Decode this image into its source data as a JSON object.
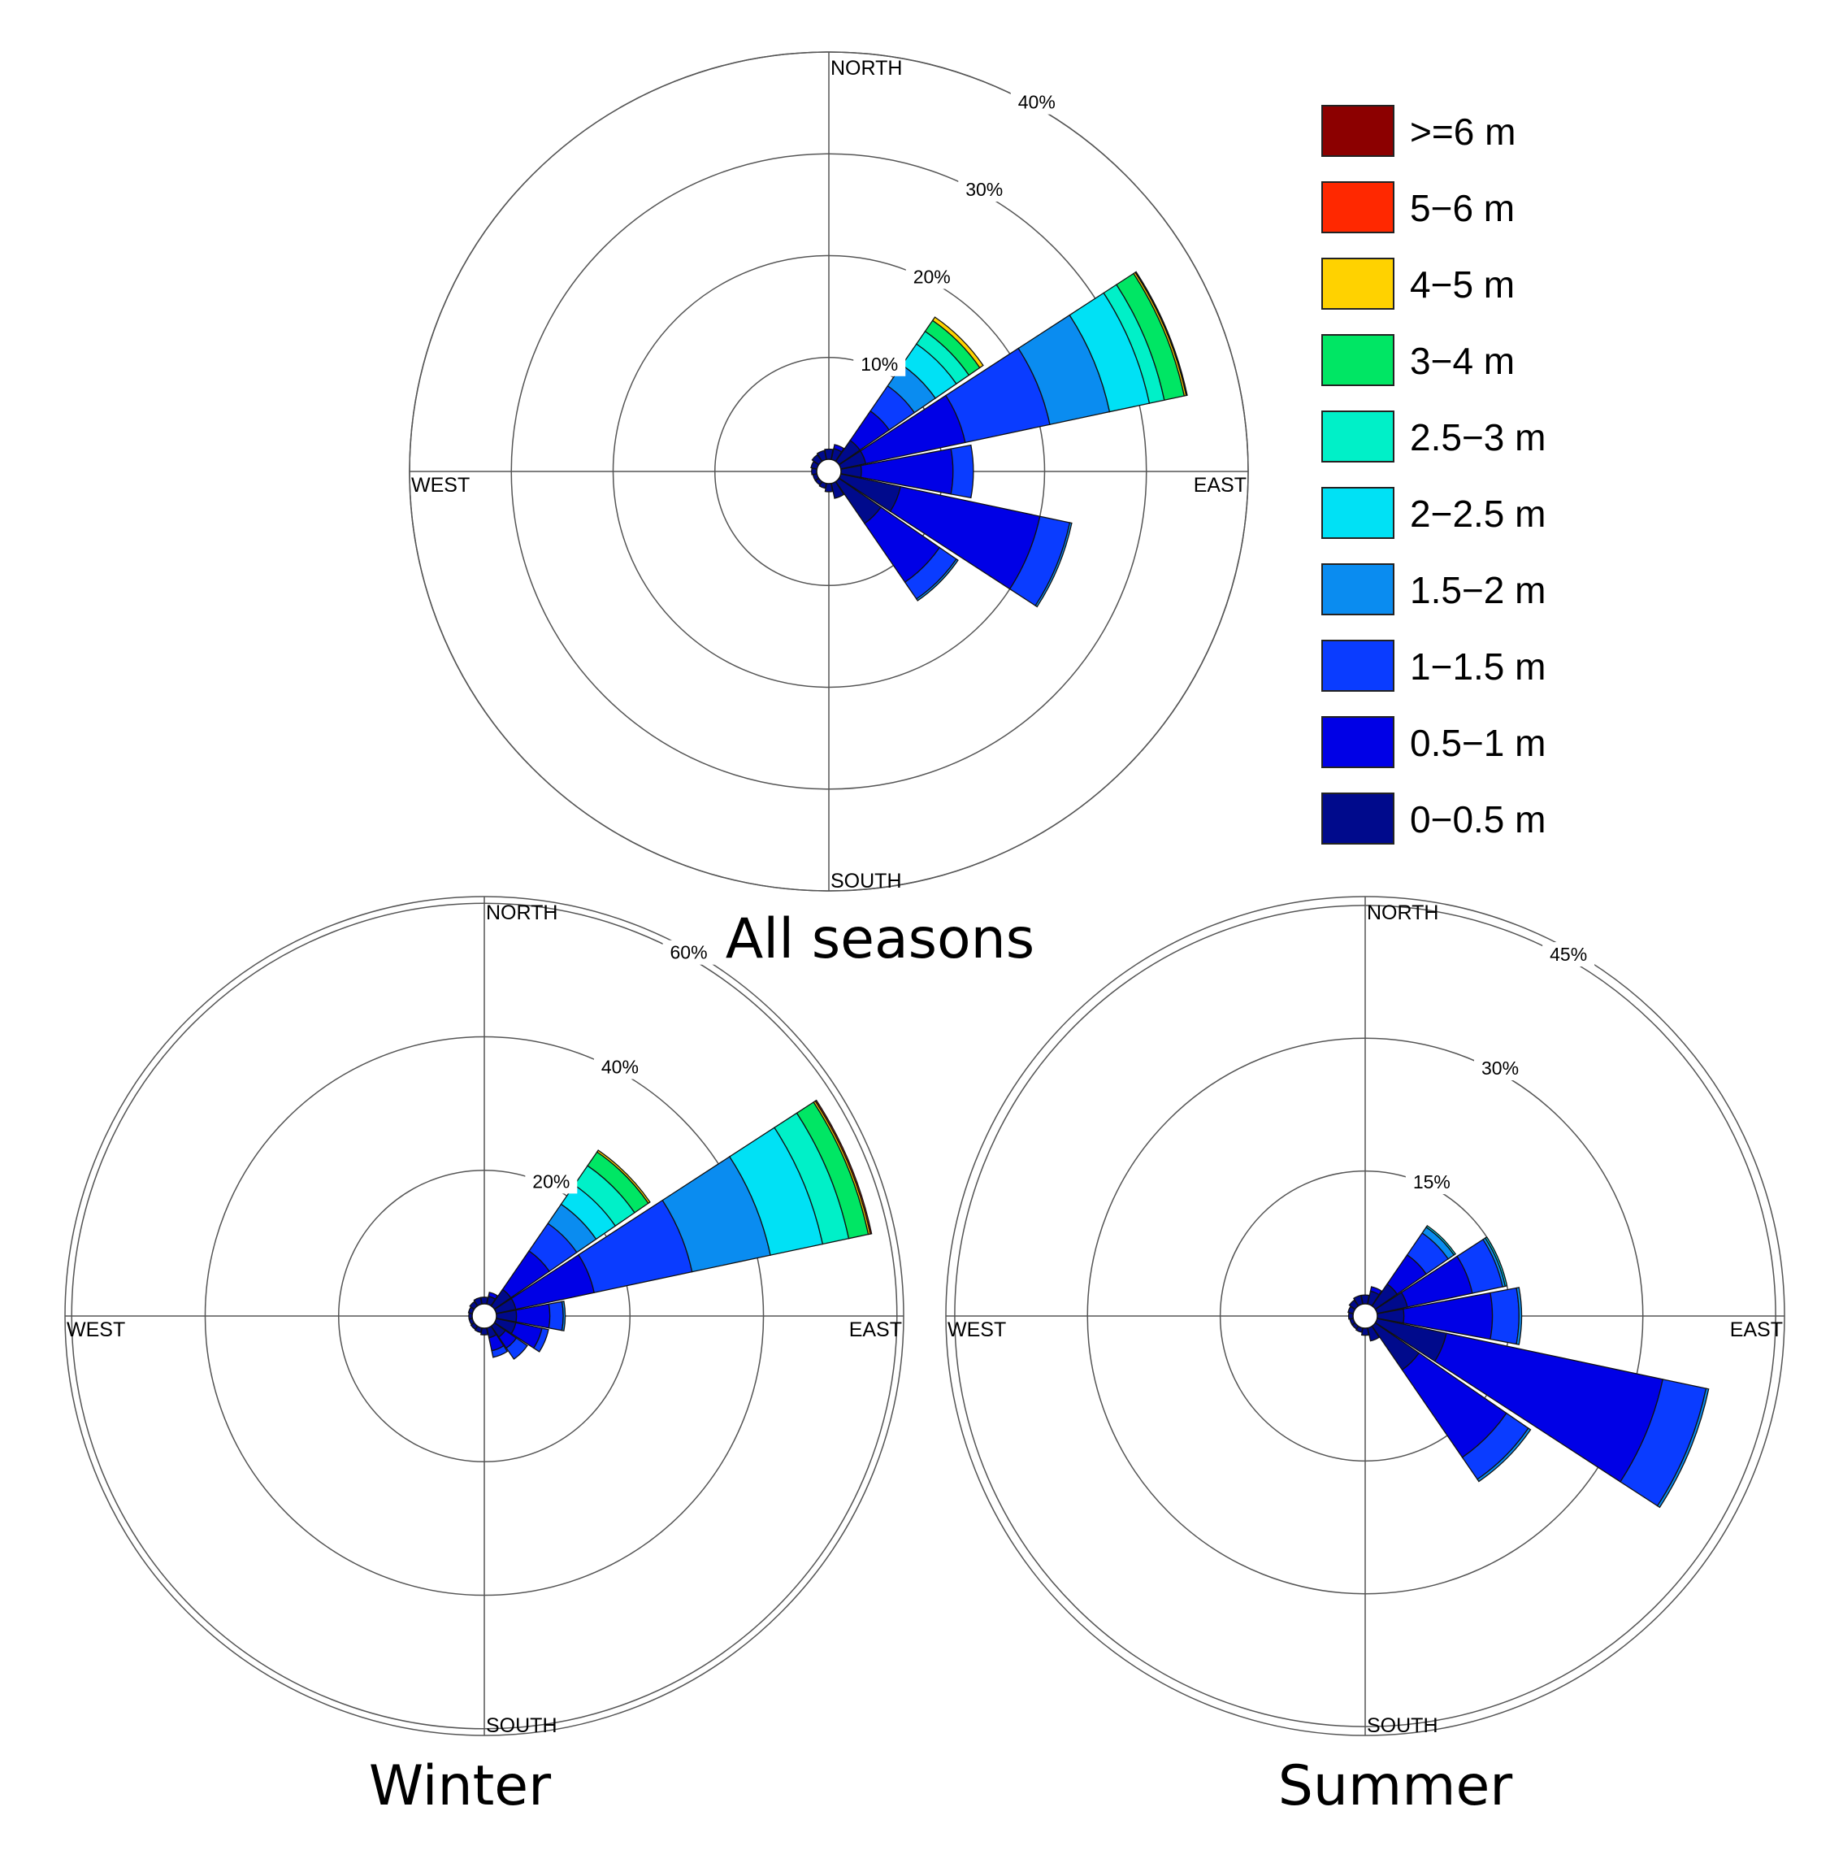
{
  "chart_data": {
    "type": "wind_rose",
    "value_unit": "% frequency",
    "direction_labels": {
      "north": "NORTH",
      "east": "EAST",
      "south": "SOUTH",
      "west": "WEST"
    },
    "legend": {
      "position": "top-right",
      "bins": [
        {
          "label": "0−0.5 m",
          "color": "#000a8c"
        },
        {
          "label": "0.5−1 m",
          "color": "#0000e6"
        },
        {
          "label": "1−1.5 m",
          "color": "#0a3cff"
        },
        {
          "label": "1.5−2 m",
          "color": "#0a8cf0"
        },
        {
          "label": "2−2.5 m",
          "color": "#00e1f5"
        },
        {
          "label": "2.5−3 m",
          "color": "#00f0c8"
        },
        {
          "label": "3−4 m",
          "color": "#00e664"
        },
        {
          "label": "4−5 m",
          "color": "#ffd200"
        },
        {
          "label": "5−6 m",
          "color": "#ff2800"
        },
        {
          "label": ">=6 m",
          "color": "#8c0000"
        }
      ]
    },
    "roses": [
      {
        "name": "All seasons",
        "rings": [
          10,
          20,
          30,
          40
        ],
        "ring_labels": [
          "10%",
          "20%",
          "30%",
          "40%"
        ],
        "max_radius": 40,
        "bins": [
          {
            "direction": 0,
            "cum": [
              1.0
            ]
          },
          {
            "direction": 22.5,
            "cum": [
              1.1,
              1.5
            ]
          },
          {
            "direction": 45,
            "cum": [
              2.5,
              6.0,
              9.0,
              11.5,
              14.0,
              15.5,
              16.8,
              17.2
            ]
          },
          {
            "direction": 67.5,
            "cum": [
              2.5,
              12.5,
              21.0,
              27.0,
              31.0,
              32.5,
              34.5,
              34.7,
              34.8
            ]
          },
          {
            "direction": 90,
            "cum": [
              2.0,
              11.0,
              13.0
            ]
          },
          {
            "direction": 112.5,
            "cum": [
              6.0,
              20.0,
              23.0,
              23.2
            ]
          },
          {
            "direction": 135,
            "cum": [
              5.0,
              12.0,
              14.0,
              14.2
            ]
          },
          {
            "direction": 157.5,
            "cum": [
              1.5
            ]
          },
          {
            "direction": 180,
            "cum": [
              0.8
            ]
          },
          {
            "direction": 202.5,
            "cum": [
              0.5
            ]
          },
          {
            "direction": 225,
            "cum": [
              0.4
            ]
          },
          {
            "direction": 247.5,
            "cum": [
              0.4
            ]
          },
          {
            "direction": 270,
            "cum": [
              0.5
            ]
          },
          {
            "direction": 292.5,
            "cum": [
              0.6
            ]
          },
          {
            "direction": 315,
            "cum": [
              0.8
            ]
          },
          {
            "direction": 337.5,
            "cum": [
              0.9
            ]
          }
        ]
      },
      {
        "name": "Winter",
        "rings": [
          20,
          40,
          60
        ],
        "ring_labels": [
          "20%",
          "40%",
          "60%"
        ],
        "max_radius": 61,
        "bins": [
          {
            "direction": 0,
            "cum": [
              1.0
            ]
          },
          {
            "direction": 22.5,
            "cum": [
              1.2,
              1.8
            ]
          },
          {
            "direction": 45,
            "cum": [
              3.0,
              10.0,
              15.0,
              18.5,
              22.0,
              25.5,
              28.0,
              28.3
            ]
          },
          {
            "direction": 67.5,
            "cum": [
              3.0,
              15.0,
              30.0,
              42.0,
              50.0,
              54.0,
              57.0,
              57.3,
              57.5
            ]
          },
          {
            "direction": 90,
            "cum": [
              3.0,
              8.0,
              10.0,
              10.3
            ]
          },
          {
            "direction": 112.5,
            "cum": [
              3.0,
              7.0,
              8.0
            ]
          },
          {
            "direction": 135,
            "cum": [
              2.0,
              4.0,
              6.0
            ]
          },
          {
            "direction": 157.5,
            "cum": [
              1.5,
              3.5,
              4.5
            ]
          },
          {
            "direction": 180,
            "cum": [
              1.0
            ]
          },
          {
            "direction": 202.5,
            "cum": [
              0.7
            ]
          },
          {
            "direction": 225,
            "cum": [
              0.6
            ]
          },
          {
            "direction": 247.5,
            "cum": [
              0.5
            ]
          },
          {
            "direction": 270,
            "cum": [
              0.5
            ]
          },
          {
            "direction": 292.5,
            "cum": [
              0.6
            ]
          },
          {
            "direction": 315,
            "cum": [
              0.8
            ]
          },
          {
            "direction": 337.5,
            "cum": [
              1.0
            ]
          }
        ]
      },
      {
        "name": "Summer",
        "rings": [
          15,
          30,
          45
        ],
        "ring_labels": [
          "15%",
          "30%",
          "45%"
        ],
        "max_radius": 46,
        "bins": [
          {
            "direction": 0,
            "cum": [
              1.0
            ]
          },
          {
            "direction": 22.5,
            "cum": [
              1.5,
              2.0
            ]
          },
          {
            "direction": 45,
            "cum": [
              3.0,
              7.0,
              10.0,
              10.8,
              11.0
            ]
          },
          {
            "direction": 67.5,
            "cum": [
              3.5,
              11.0,
              14.5,
              14.8,
              15.0
            ]
          },
          {
            "direction": 90,
            "cum": [
              3.0,
              13.0,
              16.0,
              16.3
            ]
          },
          {
            "direction": 112.5,
            "cum": [
              8.0,
              33.0,
              38.0,
              38.3
            ]
          },
          {
            "direction": 135,
            "cum": [
              6.0,
              18.0,
              21.0,
              21.3
            ]
          },
          {
            "direction": 157.5,
            "cum": [
              1.5
            ]
          },
          {
            "direction": 180,
            "cum": [
              0.8
            ]
          },
          {
            "direction": 202.5,
            "cum": [
              0.5
            ]
          },
          {
            "direction": 225,
            "cum": [
              0.4
            ]
          },
          {
            "direction": 247.5,
            "cum": [
              0.4
            ]
          },
          {
            "direction": 270,
            "cum": [
              0.5
            ]
          },
          {
            "direction": 292.5,
            "cum": [
              0.6
            ]
          },
          {
            "direction": 315,
            "cum": [
              0.8
            ]
          },
          {
            "direction": 337.5,
            "cum": [
              1.0
            ]
          }
        ]
      }
    ]
  }
}
